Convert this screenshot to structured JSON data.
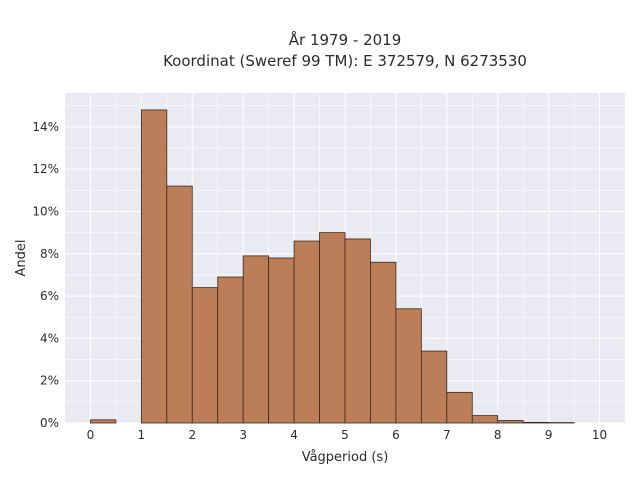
{
  "chart_data": {
    "type": "bar",
    "title_line1": "År 1979 - 2019",
    "title_line2": "Koordinat (Sweref 99 TM): E 372579, N 6273530",
    "xlabel": "Vågperiod (s)",
    "ylabel": "Andel",
    "bin_width": 0.5,
    "bins": [
      {
        "x0": 0.0,
        "value": 0.15
      },
      {
        "x0": 0.5,
        "value": 0.0
      },
      {
        "x0": 1.0,
        "value": 14.8
      },
      {
        "x0": 1.5,
        "value": 11.2
      },
      {
        "x0": 2.0,
        "value": 6.4
      },
      {
        "x0": 2.5,
        "value": 6.9
      },
      {
        "x0": 3.0,
        "value": 7.9
      },
      {
        "x0": 3.5,
        "value": 7.8
      },
      {
        "x0": 4.0,
        "value": 8.6
      },
      {
        "x0": 4.5,
        "value": 9.0
      },
      {
        "x0": 5.0,
        "value": 8.7
      },
      {
        "x0": 5.5,
        "value": 7.6
      },
      {
        "x0": 6.0,
        "value": 5.4
      },
      {
        "x0": 6.5,
        "value": 3.4
      },
      {
        "x0": 7.0,
        "value": 1.45
      },
      {
        "x0": 7.5,
        "value": 0.35
      },
      {
        "x0": 8.0,
        "value": 0.12
      },
      {
        "x0": 8.5,
        "value": 0.03
      },
      {
        "x0": 9.0,
        "value": 0.02
      },
      {
        "x0": 9.5,
        "value": 0.0
      }
    ],
    "xlim": [
      -0.5,
      10.5
    ],
    "ylim": [
      0,
      15.6
    ],
    "x_ticks": [
      0,
      1,
      2,
      3,
      4,
      5,
      6,
      7,
      8,
      9,
      10
    ],
    "x_tick_labels": [
      "0",
      "1",
      "2",
      "3",
      "4",
      "5",
      "6",
      "7",
      "8",
      "9",
      "10"
    ],
    "y_ticks": [
      0,
      2,
      4,
      6,
      8,
      10,
      12,
      14
    ],
    "y_tick_labels": [
      "0%",
      "2%",
      "4%",
      "6%",
      "8%",
      "10%",
      "12%",
      "14%"
    ],
    "grid": true,
    "bar_color": "#b87850",
    "bar_edge_color": "#3a2a1f",
    "plot_background": "#eaeaf2"
  }
}
